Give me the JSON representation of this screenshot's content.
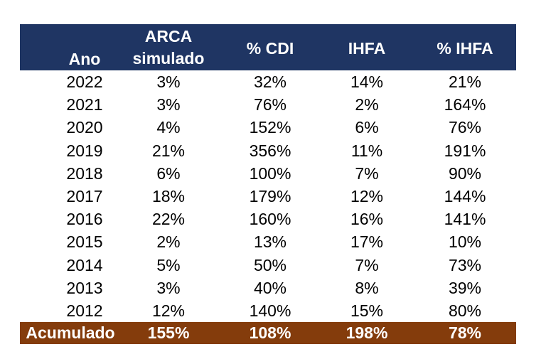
{
  "header": {
    "ano": "Ano",
    "arca_line1": "ARCA",
    "arca_line2": "simulado",
    "cdi": "% CDI",
    "ihfa": "IHFA",
    "pct_ihfa": "% IHFA"
  },
  "rows": [
    {
      "ano": "2022",
      "arca": "3%",
      "cdi": "32%",
      "ihfa": "14%",
      "pct_ihfa": "21%"
    },
    {
      "ano": "2021",
      "arca": "3%",
      "cdi": "76%",
      "ihfa": "2%",
      "pct_ihfa": "164%"
    },
    {
      "ano": "2020",
      "arca": "4%",
      "cdi": "152%",
      "ihfa": "6%",
      "pct_ihfa": "76%"
    },
    {
      "ano": "2019",
      "arca": "21%",
      "cdi": "356%",
      "ihfa": "11%",
      "pct_ihfa": "191%"
    },
    {
      "ano": "2018",
      "arca": "6%",
      "cdi": "100%",
      "ihfa": "7%",
      "pct_ihfa": "90%"
    },
    {
      "ano": "2017",
      "arca": "18%",
      "cdi": "179%",
      "ihfa": "12%",
      "pct_ihfa": "144%"
    },
    {
      "ano": "2016",
      "arca": "22%",
      "cdi": "160%",
      "ihfa": "16%",
      "pct_ihfa": "141%"
    },
    {
      "ano": "2015",
      "arca": "2%",
      "cdi": "13%",
      "ihfa": "17%",
      "pct_ihfa": "10%"
    },
    {
      "ano": "2014",
      "arca": "5%",
      "cdi": "50%",
      "ihfa": "7%",
      "pct_ihfa": "73%"
    },
    {
      "ano": "2013",
      "arca": "3%",
      "cdi": "40%",
      "ihfa": "8%",
      "pct_ihfa": "39%"
    },
    {
      "ano": "2012",
      "arca": "12%",
      "cdi": "140%",
      "ihfa": "15%",
      "pct_ihfa": "80%"
    }
  ],
  "total": {
    "ano": "Acumulado",
    "arca": "155%",
    "cdi": "108%",
    "ihfa": "198%",
    "pct_ihfa": "78%"
  },
  "colors": {
    "header_bg": "#1f3563",
    "total_bg": "#843c0c",
    "header_text": "#ffffff",
    "body_text": "#000000"
  }
}
